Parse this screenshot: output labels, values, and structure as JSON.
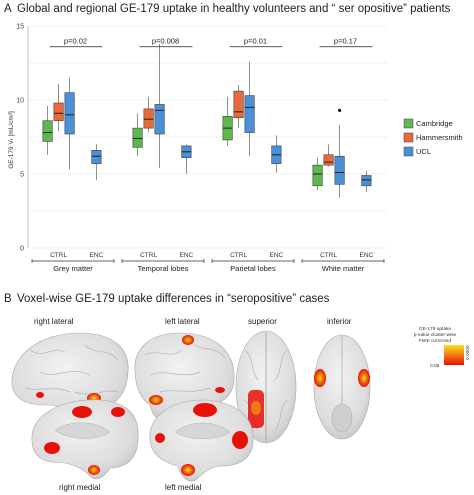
{
  "panel_a": {
    "letter": "A",
    "title": "Global and regional GE-179 uptake in healthy volunteers and “ ser opositive” patients",
    "ylabel": "GE-179 Vₜ [mL/cm³]"
  },
  "panel_b": {
    "letter": "B",
    "title": "Voxel-wise GE-179 uptake differences in “seropositive” cases",
    "views": [
      {
        "key": "right_lateral",
        "label": "right lateral"
      },
      {
        "key": "left_lateral",
        "label": "left lateral"
      },
      {
        "key": "superior",
        "label": "superior"
      },
      {
        "key": "inferior",
        "label": "inferior"
      },
      {
        "key": "right_medial",
        "label": "right medial"
      },
      {
        "key": "left_medial",
        "label": "left medial"
      }
    ],
    "colorbar": {
      "title_lines": [
        "GE-179 uptake",
        "p-value cluster-wise",
        "FWE corrected"
      ],
      "low_label": "0.05",
      "high_label": "0.0000",
      "colors": [
        "#e8110a",
        "#f07a12",
        "#fbe21e"
      ]
    }
  },
  "chart_data": {
    "type": "box",
    "title": "Global and regional GE-179 uptake in healthy volunteers and “ ser opositive” patients",
    "ylabel": "GE-179 Vₜ [mL/cm³]",
    "ylim": [
      0,
      15
    ],
    "yticks": [
      0,
      5,
      10,
      15
    ],
    "grid": true,
    "legend_position": "right",
    "series_colors": {
      "Cambridge": "#5db84e",
      "Hammersmith": "#e8693a",
      "UCL": "#4b8fd6",
      "ENC": "#4b8fd6"
    },
    "legend": [
      "Cambridge",
      "Hammersmith",
      "UCL"
    ],
    "groups": [
      {
        "name": "Grey matter",
        "pvalue": "p=0.02",
        "subgroups": [
          {
            "label": "CTRL",
            "boxes": [
              {
                "series": "Cambridge",
                "min": 6.3,
                "q1": 7.2,
                "median": 7.8,
                "q3": 8.6,
                "max": 9.6
              },
              {
                "series": "Hammersmith",
                "min": 7.9,
                "q1": 8.6,
                "median": 9.1,
                "q3": 9.8,
                "max": 11.1
              },
              {
                "series": "UCL",
                "min": 5.3,
                "q1": 7.7,
                "median": 9.0,
                "q3": 10.5,
                "max": 11.5
              }
            ]
          },
          {
            "label": "ENC",
            "boxes": [
              {
                "series": "ENC",
                "min": 4.6,
                "q1": 5.7,
                "median": 6.2,
                "q3": 6.6,
                "max": 7.0
              }
            ]
          }
        ]
      },
      {
        "name": "Temporal lobes",
        "pvalue": "p=0.008",
        "subgroups": [
          {
            "label": "CTRL",
            "boxes": [
              {
                "series": "Cambridge",
                "min": 6.2,
                "q1": 6.8,
                "median": 7.4,
                "q3": 8.1,
                "max": 9.1
              },
              {
                "series": "Hammersmith",
                "min": 7.8,
                "q1": 8.1,
                "median": 8.7,
                "q3": 9.4,
                "max": 10.2
              },
              {
                "series": "UCL",
                "min": 5.4,
                "q1": 7.7,
                "median": 9.3,
                "q3": 9.7,
                "max": 13.8
              }
            ]
          },
          {
            "label": "ENC",
            "boxes": [
              {
                "series": "ENC",
                "min": 5.0,
                "q1": 6.1,
                "median": 6.5,
                "q3": 6.9,
                "max": 7.0
              }
            ]
          }
        ]
      },
      {
        "name": "Parietal lobes",
        "pvalue": "p=0.01",
        "subgroups": [
          {
            "label": "CTRL",
            "boxes": [
              {
                "series": "Cambridge",
                "min": 6.9,
                "q1": 7.3,
                "median": 8.1,
                "q3": 8.9,
                "max": 10.2
              },
              {
                "series": "Hammersmith",
                "min": 8.1,
                "q1": 8.8,
                "median": 9.2,
                "q3": 10.6,
                "max": 11.0
              },
              {
                "series": "UCL",
                "min": 6.2,
                "q1": 7.8,
                "median": 9.5,
                "q3": 10.3,
                "max": 12.6
              }
            ]
          },
          {
            "label": "ENC",
            "boxes": [
              {
                "series": "ENC",
                "min": 5.1,
                "q1": 5.7,
                "median": 6.3,
                "q3": 6.9,
                "max": 7.6
              }
            ]
          }
        ]
      },
      {
        "name": "White matter",
        "pvalue": "p=0.17",
        "subgroups": [
          {
            "label": "CTRL",
            "boxes": [
              {
                "series": "Cambridge",
                "min": 3.9,
                "q1": 4.2,
                "median": 5.0,
                "q3": 5.6,
                "max": 6.1
              },
              {
                "series": "Hammersmith",
                "min": 5.5,
                "q1": 5.6,
                "median": 5.8,
                "q3": 6.3,
                "max": 7.0
              },
              {
                "series": "UCL",
                "min": 3.4,
                "q1": 4.3,
                "median": 5.1,
                "q3": 6.2,
                "max": 8.3,
                "outliers": [
                  9.3
                ]
              }
            ]
          },
          {
            "label": "ENC",
            "boxes": [
              {
                "series": "ENC",
                "min": 3.8,
                "q1": 4.2,
                "median": 4.6,
                "q3": 4.9,
                "max": 5.2
              }
            ]
          }
        ]
      }
    ]
  }
}
